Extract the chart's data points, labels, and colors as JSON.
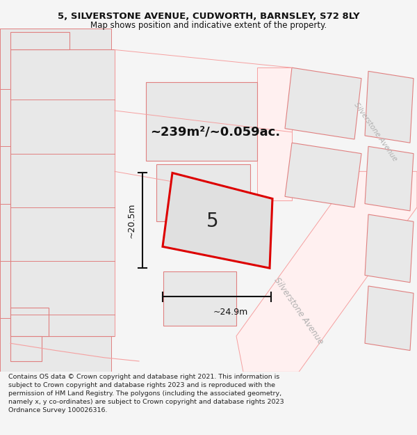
{
  "title_line1": "5, SILVERSTONE AVENUE, CUDWORTH, BARNSLEY, S72 8LY",
  "title_line2": "Map shows position and indicative extent of the property.",
  "area_label": "~239m²/~0.059ac.",
  "width_label": "~24.9m",
  "height_label": "~20.5m",
  "property_number": "5",
  "footer_text": "Contains OS data © Crown copyright and database right 2021. This information is subject to Crown copyright and database rights 2023 and is reproduced with the permission of HM Land Registry. The polygons (including the associated geometry, namely x, y co-ordinates) are subject to Crown copyright and database rights 2023 Ordnance Survey 100026316.",
  "bg_color": "#f5f5f5",
  "map_bg": "#ffffff",
  "property_fill": "#e0e0e0",
  "property_outline": "#dd0000",
  "road_color": "#f5a0a0",
  "bld_fill": "#e8e8e8",
  "bld_edge": "#e08080",
  "street_label": "Silverstone Avenue",
  "street_color": "#b0b0b0",
  "dim_color": "#111111",
  "text_color": "#111111"
}
